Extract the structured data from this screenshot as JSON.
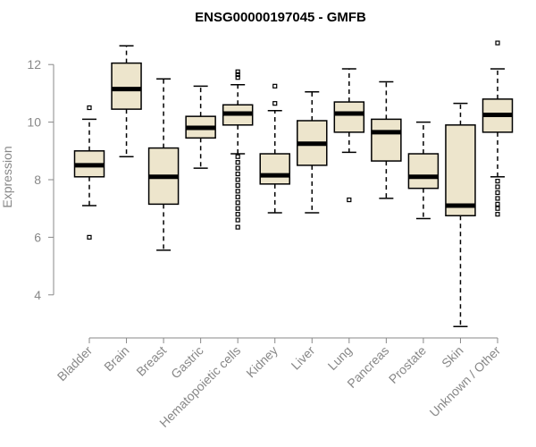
{
  "chart_data": {
    "type": "boxplot",
    "title": "ENSG00000197045 - GMFB",
    "ylabel": "Expression",
    "xlabel": "",
    "ylim": [
      3,
      13
    ],
    "yticks": [
      4,
      6,
      8,
      10,
      12
    ],
    "colors": {
      "box_fill": "#ede5cc",
      "stroke": "#000000",
      "axis_text": "#888888"
    },
    "categories": [
      "Bladder",
      "Brain",
      "Breast",
      "Gastric",
      "Hematopoietic cells",
      "Kidney",
      "Liver",
      "Lung",
      "Pancreas",
      "Prostate",
      "Skin",
      "Unknown / Other"
    ],
    "boxes": [
      {
        "category": "Bladder",
        "whisker_low": 7.1,
        "q1": 8.1,
        "median": 8.5,
        "q3": 9.0,
        "whisker_high": 10.1,
        "outliers": [
          10.5,
          6.0
        ]
      },
      {
        "category": "Brain",
        "whisker_low": 8.8,
        "q1": 10.45,
        "median": 11.15,
        "q3": 12.05,
        "whisker_high": 12.65,
        "outliers": []
      },
      {
        "category": "Breast",
        "whisker_low": 5.55,
        "q1": 7.15,
        "median": 8.1,
        "q3": 9.1,
        "whisker_high": 11.5,
        "outliers": []
      },
      {
        "category": "Gastric",
        "whisker_low": 8.4,
        "q1": 9.45,
        "median": 9.8,
        "q3": 10.2,
        "whisker_high": 11.25,
        "outliers": []
      },
      {
        "category": "Hematopoietic cells",
        "whisker_low": 8.9,
        "q1": 9.9,
        "median": 10.3,
        "q3": 10.6,
        "whisker_high": 11.3,
        "outliers": [
          11.65,
          11.75,
          11.55,
          8.8,
          8.6,
          8.4,
          8.2,
          8.0,
          7.8,
          7.6,
          7.4,
          7.2,
          7.0,
          6.8,
          6.6,
          6.35
        ]
      },
      {
        "category": "Kidney",
        "whisker_low": 6.85,
        "q1": 7.85,
        "median": 8.15,
        "q3": 8.9,
        "whisker_high": 10.4,
        "outliers": [
          11.25,
          10.65
        ]
      },
      {
        "category": "Liver",
        "whisker_low": 6.85,
        "q1": 8.5,
        "median": 9.25,
        "q3": 10.05,
        "whisker_high": 11.05,
        "outliers": []
      },
      {
        "category": "Lung",
        "whisker_low": 8.95,
        "q1": 9.65,
        "median": 10.3,
        "q3": 10.7,
        "whisker_high": 11.85,
        "outliers": [
          7.3
        ]
      },
      {
        "category": "Pancreas",
        "whisker_low": 7.35,
        "q1": 8.65,
        "median": 9.65,
        "q3": 10.1,
        "whisker_high": 11.4,
        "outliers": []
      },
      {
        "category": "Prostate",
        "whisker_low": 6.65,
        "q1": 7.7,
        "median": 8.1,
        "q3": 8.9,
        "whisker_high": 10.0,
        "outliers": []
      },
      {
        "category": "Skin",
        "whisker_low": 2.9,
        "q1": 6.75,
        "median": 7.1,
        "q3": 9.9,
        "whisker_high": 10.65,
        "outliers": []
      },
      {
        "category": "Unknown / Other",
        "whisker_low": 8.1,
        "q1": 9.65,
        "median": 10.25,
        "q3": 10.8,
        "whisker_high": 11.85,
        "outliers": [
          12.75,
          7.95,
          7.75,
          7.55,
          7.35,
          7.15,
          7.0,
          6.8
        ]
      }
    ],
    "grid": false,
    "legend": "none"
  }
}
